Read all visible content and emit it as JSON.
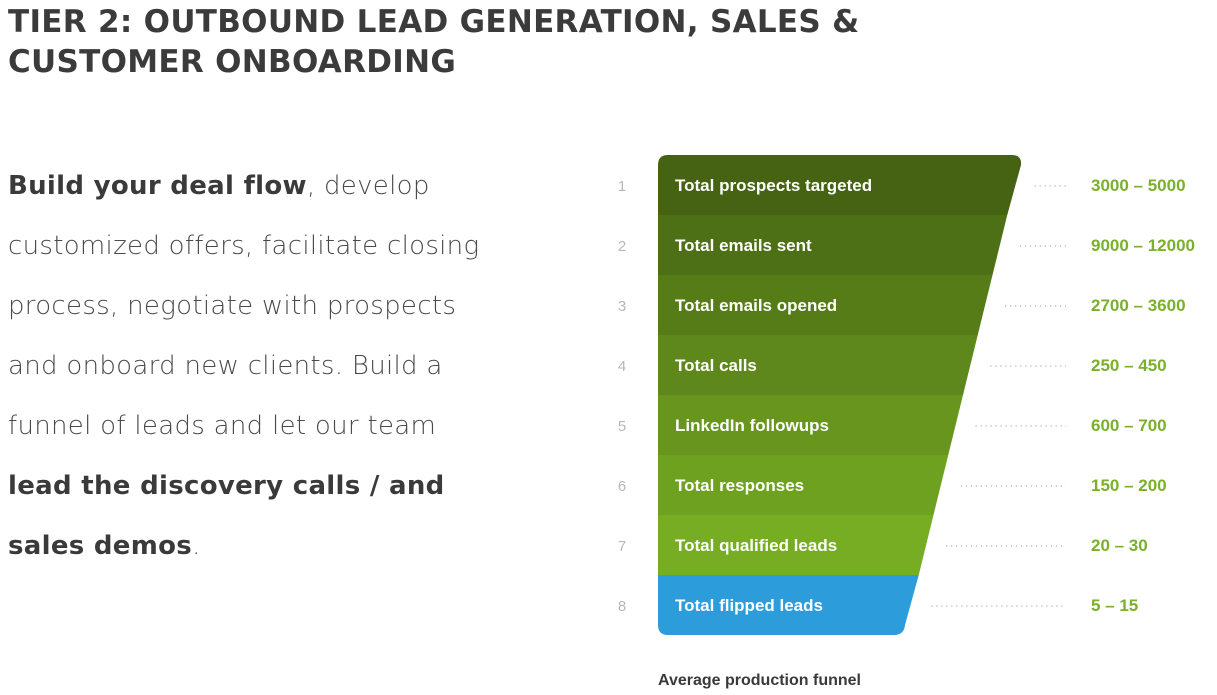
{
  "title": "TIER 2: OUTBOUND LEAD GENERATION, SALES & CUSTOMER ONBOARDING",
  "intro": {
    "part1_bold": "Build your deal flow",
    "part2": ", develop customized offers, facilitate closing process, negotiate with prospects and onboard new clients. Build a funnel of leads and let our team ",
    "part3_bold": "lead the discovery calls / and sales demos",
    "part4": "."
  },
  "funnel": {
    "caption": "Average production funnel",
    "colors": {
      "number": "#b8b8b8",
      "value": "#7ab02a",
      "leader_dots": "#888888",
      "label": "#ffffff",
      "highlight": "#2d9cdb"
    },
    "stages": [
      {
        "number": "1",
        "label": "Total prospects targeted",
        "value": "3000 – 5000",
        "color": "#456312"
      },
      {
        "number": "2",
        "label": "Total emails sent",
        "value": "9000 – 12000",
        "color": "#4d6f15"
      },
      {
        "number": "3",
        "label": "Total emails opened",
        "value": "2700 – 3600",
        "color": "#567c18"
      },
      {
        "number": "4",
        "label": "Total calls",
        "value": "250 – 450",
        "color": "#5e881b"
      },
      {
        "number": "5",
        "label": "LinkedIn followups",
        "value": "600 – 700",
        "color": "#67951d"
      },
      {
        "number": "6",
        "label": "Total responses",
        "value": "150 – 200",
        "color": "#6fa120"
      },
      {
        "number": "7",
        "label": "Total qualified leads",
        "value": "20 – 30",
        "color": "#77ad23"
      },
      {
        "number": "8",
        "label": "Total flipped leads",
        "value": "5 – 15",
        "color": "#2d9cdb"
      }
    ]
  }
}
